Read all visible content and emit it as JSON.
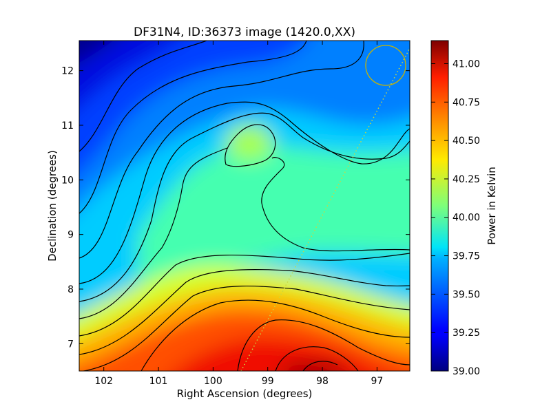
{
  "chart_data": {
    "type": "heatmap",
    "title": "DF31N4, ID:36373 image (1420.0,XX)",
    "xlabel": "Right Ascension (degrees)",
    "ylabel": "Declination (degrees)",
    "xlim": [
      102.45,
      96.4
    ],
    "ylim": [
      6.5,
      12.55
    ],
    "x_axis_reversed": true,
    "x_ticks": [
      102,
      101,
      100,
      99,
      98,
      97
    ],
    "y_ticks": [
      7,
      8,
      9,
      10,
      11,
      12
    ],
    "colorbar": {
      "label": "Power in Kelvin",
      "colormap": "jet",
      "range": [
        39.0,
        41.15
      ],
      "ticks": [
        "39.00",
        "39.25",
        "39.50",
        "39.75",
        "40.00",
        "40.25",
        "40.50",
        "40.75",
        "41.00"
      ]
    },
    "field_features": [
      {
        "kind": "peak",
        "ra": 98.2,
        "dec": 6.55,
        "value": 41.1
      },
      {
        "kind": "local_max",
        "ra": 99.3,
        "dec": 10.6,
        "value": 40.1
      },
      {
        "kind": "minimum",
        "ra": 102.3,
        "dec": 12.5,
        "value": 39.0
      }
    ],
    "contours": true,
    "marker_circle": {
      "ra": 96.8,
      "dec": 12.1,
      "color": "#c8b400"
    },
    "dotted_track": {
      "from": [
        99.4,
        6.5
      ],
      "to": [
        96.4,
        12.4
      ],
      "color": "#c8d840"
    }
  }
}
